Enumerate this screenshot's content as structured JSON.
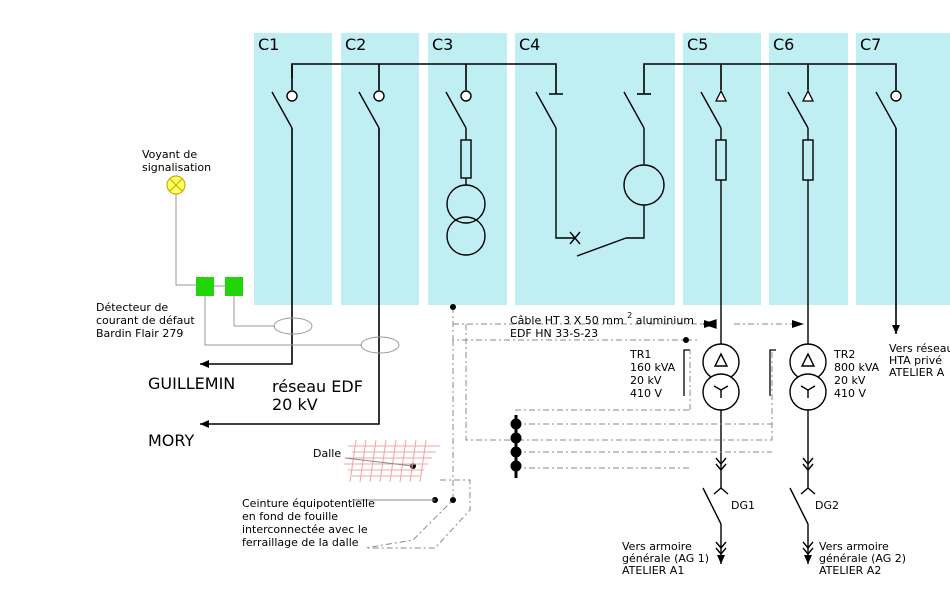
{
  "cells": [
    "C1",
    "C2",
    "C3",
    "C4",
    "C5",
    "C6",
    "C7"
  ],
  "voyant": [
    "Voyant de",
    "signalisation"
  ],
  "detecteur": [
    "Détecteur de",
    "courant de défaut",
    "Bardin Flair 279"
  ],
  "guillemin": "GUILLEMIN",
  "reseau_edf": [
    "réseau EDF",
    "20 kV"
  ],
  "mory": "MORY",
  "cable": [
    "Câble HT 3 X 50 mm",
    "2",
    "aluminium",
    "EDF HN 33-S-23"
  ],
  "tr1": [
    "TR1",
    "160 kVA",
    "20 kV",
    "410 V"
  ],
  "tr2": [
    "TR2",
    "800 kVA",
    "20 kV",
    "410 V"
  ],
  "hta": [
    "Vers réseau",
    "HTA privé",
    "ATELIER A"
  ],
  "dalle": "Dalle",
  "ceinture": [
    "Ceinture équipotentielle",
    "en fond de fouille",
    "interconnectée avec le",
    "ferraillage de la dalle"
  ],
  "dg1": "DG1",
  "dg2": "DG2",
  "ag1": [
    "Vers armoire",
    "générale (AG 1)",
    "ATELIER A1"
  ],
  "ag2": [
    "Vers armoire",
    "générale (AG 2)",
    "ATELIER A2"
  ],
  "colors": {
    "cell_fill": "#bfeef3",
    "detector_green": "#22d40a",
    "lamp_yellow": "#ffff66"
  }
}
